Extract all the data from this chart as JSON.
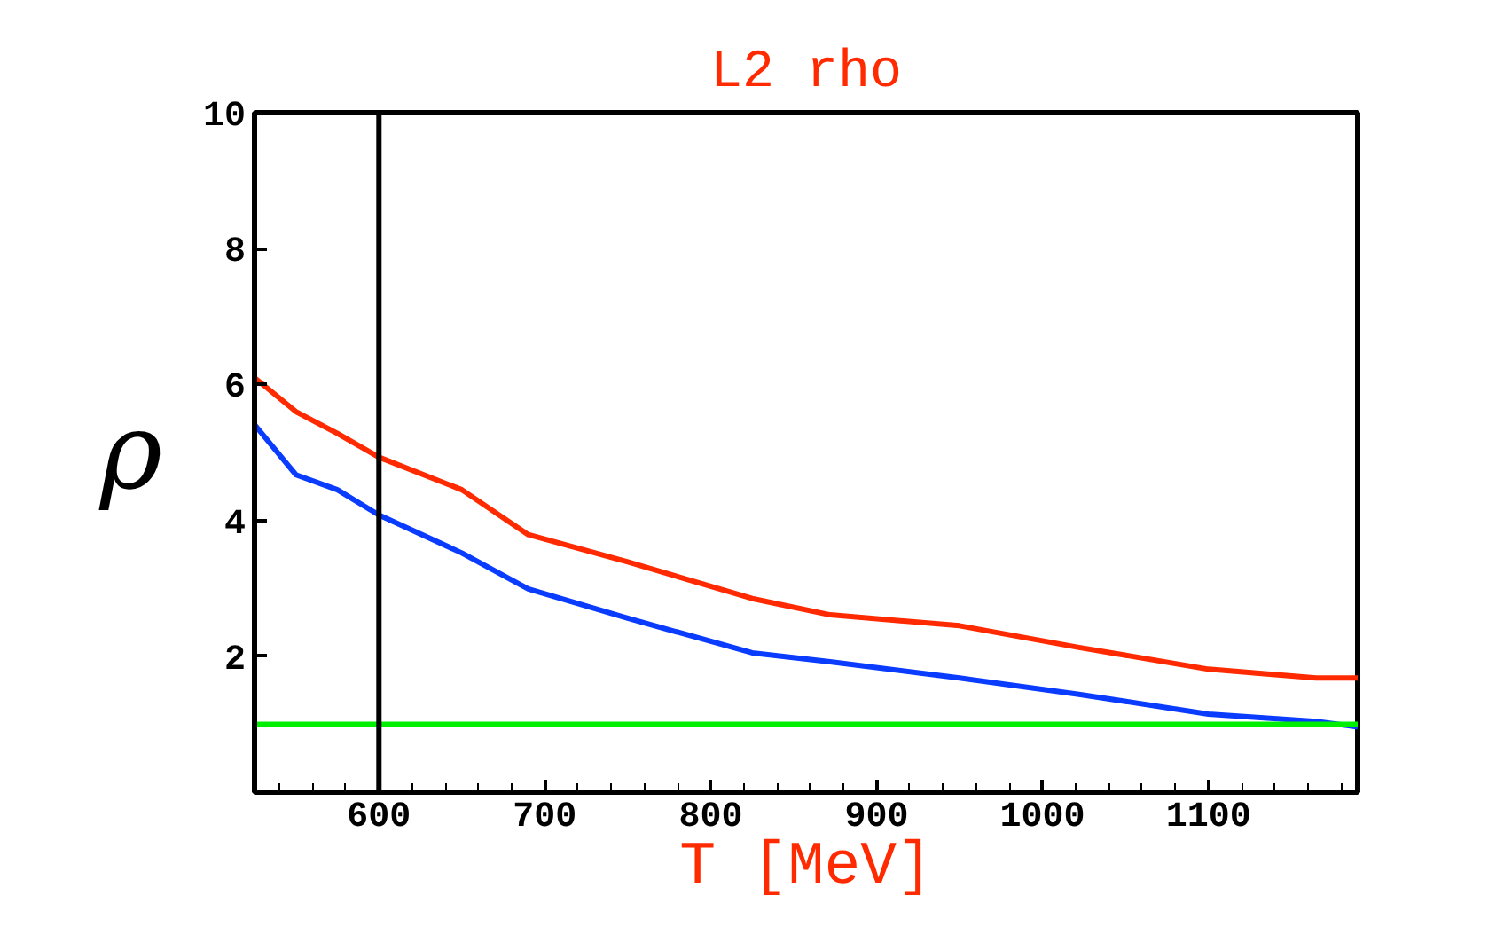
{
  "chart_data": {
    "type": "line",
    "title": "L2 rho",
    "xlabel": "T [MeV]",
    "ylabel": "ρ",
    "xlim": [
      525,
      1190
    ],
    "xticks": [
      600,
      700,
      800,
      900,
      1000,
      1100
    ],
    "ylim": [
      0,
      10
    ],
    "yticks": [
      {
        "value": 0,
        "label": null
      },
      2,
      4,
      6,
      8,
      10
    ],
    "grid": false,
    "line_style": "solid",
    "ref_lines": [
      {
        "axis": "x",
        "value": 600,
        "color": "#000000"
      }
    ],
    "series": [
      {
        "color": "#ff2a00",
        "x": [
          525,
          550,
          575,
          600,
          650,
          690,
          750,
          825,
          872,
          950,
          1022,
          1100,
          1165,
          1190
        ],
        "values": [
          6.1,
          5.6,
          5.28,
          4.93,
          4.45,
          3.79,
          3.39,
          2.85,
          2.61,
          2.45,
          2.13,
          1.81,
          1.68,
          1.68
        ]
      },
      {
        "color": "#0a3cff",
        "x": [
          525,
          550,
          575,
          600,
          650,
          690,
          750,
          825,
          872,
          950,
          1022,
          1100,
          1165,
          1190
        ],
        "values": [
          5.41,
          4.67,
          4.45,
          4.08,
          3.52,
          2.99,
          2.56,
          2.05,
          1.92,
          1.68,
          1.44,
          1.15,
          1.04,
          0.96
        ]
      },
      {
        "color": "#00ee00",
        "x": [
          525,
          1190
        ],
        "values": [
          1,
          1
        ]
      }
    ]
  }
}
